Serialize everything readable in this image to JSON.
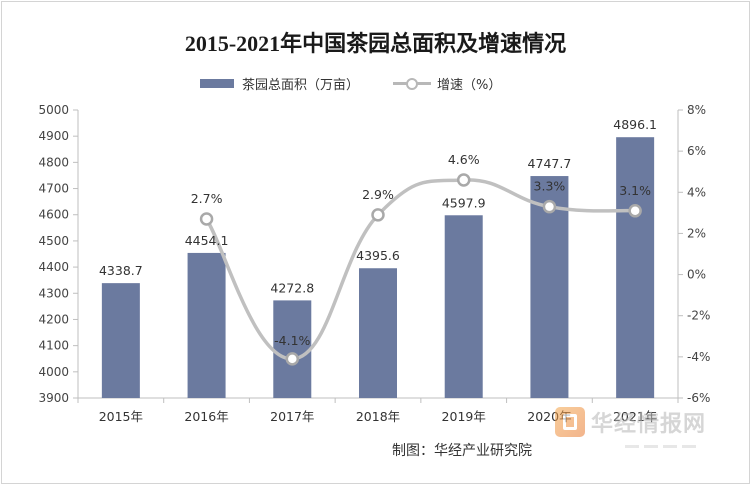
{
  "chart_data": {
    "type": "bar",
    "title": "2015-2021年中国茶园总面积及增速情况",
    "categories": [
      "2015年",
      "2016年",
      "2017年",
      "2018年",
      "2019年",
      "2020年",
      "2021年"
    ],
    "series": [
      {
        "name": "茶园总面积（万亩）",
        "type": "bar",
        "axis": "left",
        "color": "#6b7a9f",
        "values": [
          4338.7,
          4454.1,
          4272.8,
          4395.6,
          4597.9,
          4747.7,
          4896.1
        ],
        "labels": [
          "4338.7",
          "4454.1",
          "4272.8",
          "4395.6",
          "4597.9",
          "4747.7",
          "4896.1"
        ]
      },
      {
        "name": "增速（%）",
        "type": "line",
        "axis": "right",
        "color": "#c0c0c0",
        "smooth": true,
        "values": [
          null,
          2.7,
          -4.1,
          2.9,
          4.6,
          3.3,
          3.1
        ],
        "labels": [
          "",
          "2.7%",
          "-4.1%",
          "2.9%",
          "4.6%",
          "3.3%",
          "3.1%"
        ]
      }
    ],
    "y_left": {
      "min": 3900,
      "max": 5000,
      "step": 100,
      "ticks": [
        "3900",
        "4000",
        "4100",
        "4200",
        "4300",
        "4400",
        "4500",
        "4600",
        "4700",
        "4800",
        "4900",
        "5000"
      ]
    },
    "y_right": {
      "min": -6,
      "max": 8,
      "step": 2,
      "ticks": [
        "-6%",
        "-4%",
        "-2%",
        "0%",
        "2%",
        "4%",
        "6%",
        "8%"
      ]
    },
    "grid": false,
    "legend_position": "top"
  },
  "legend": {
    "bar_label": "茶园总面积（万亩）",
    "line_label": "增速（%）"
  },
  "footer": {
    "credit": "制图：华经产业研究院"
  },
  "watermark": {
    "text": "华经情报网"
  }
}
